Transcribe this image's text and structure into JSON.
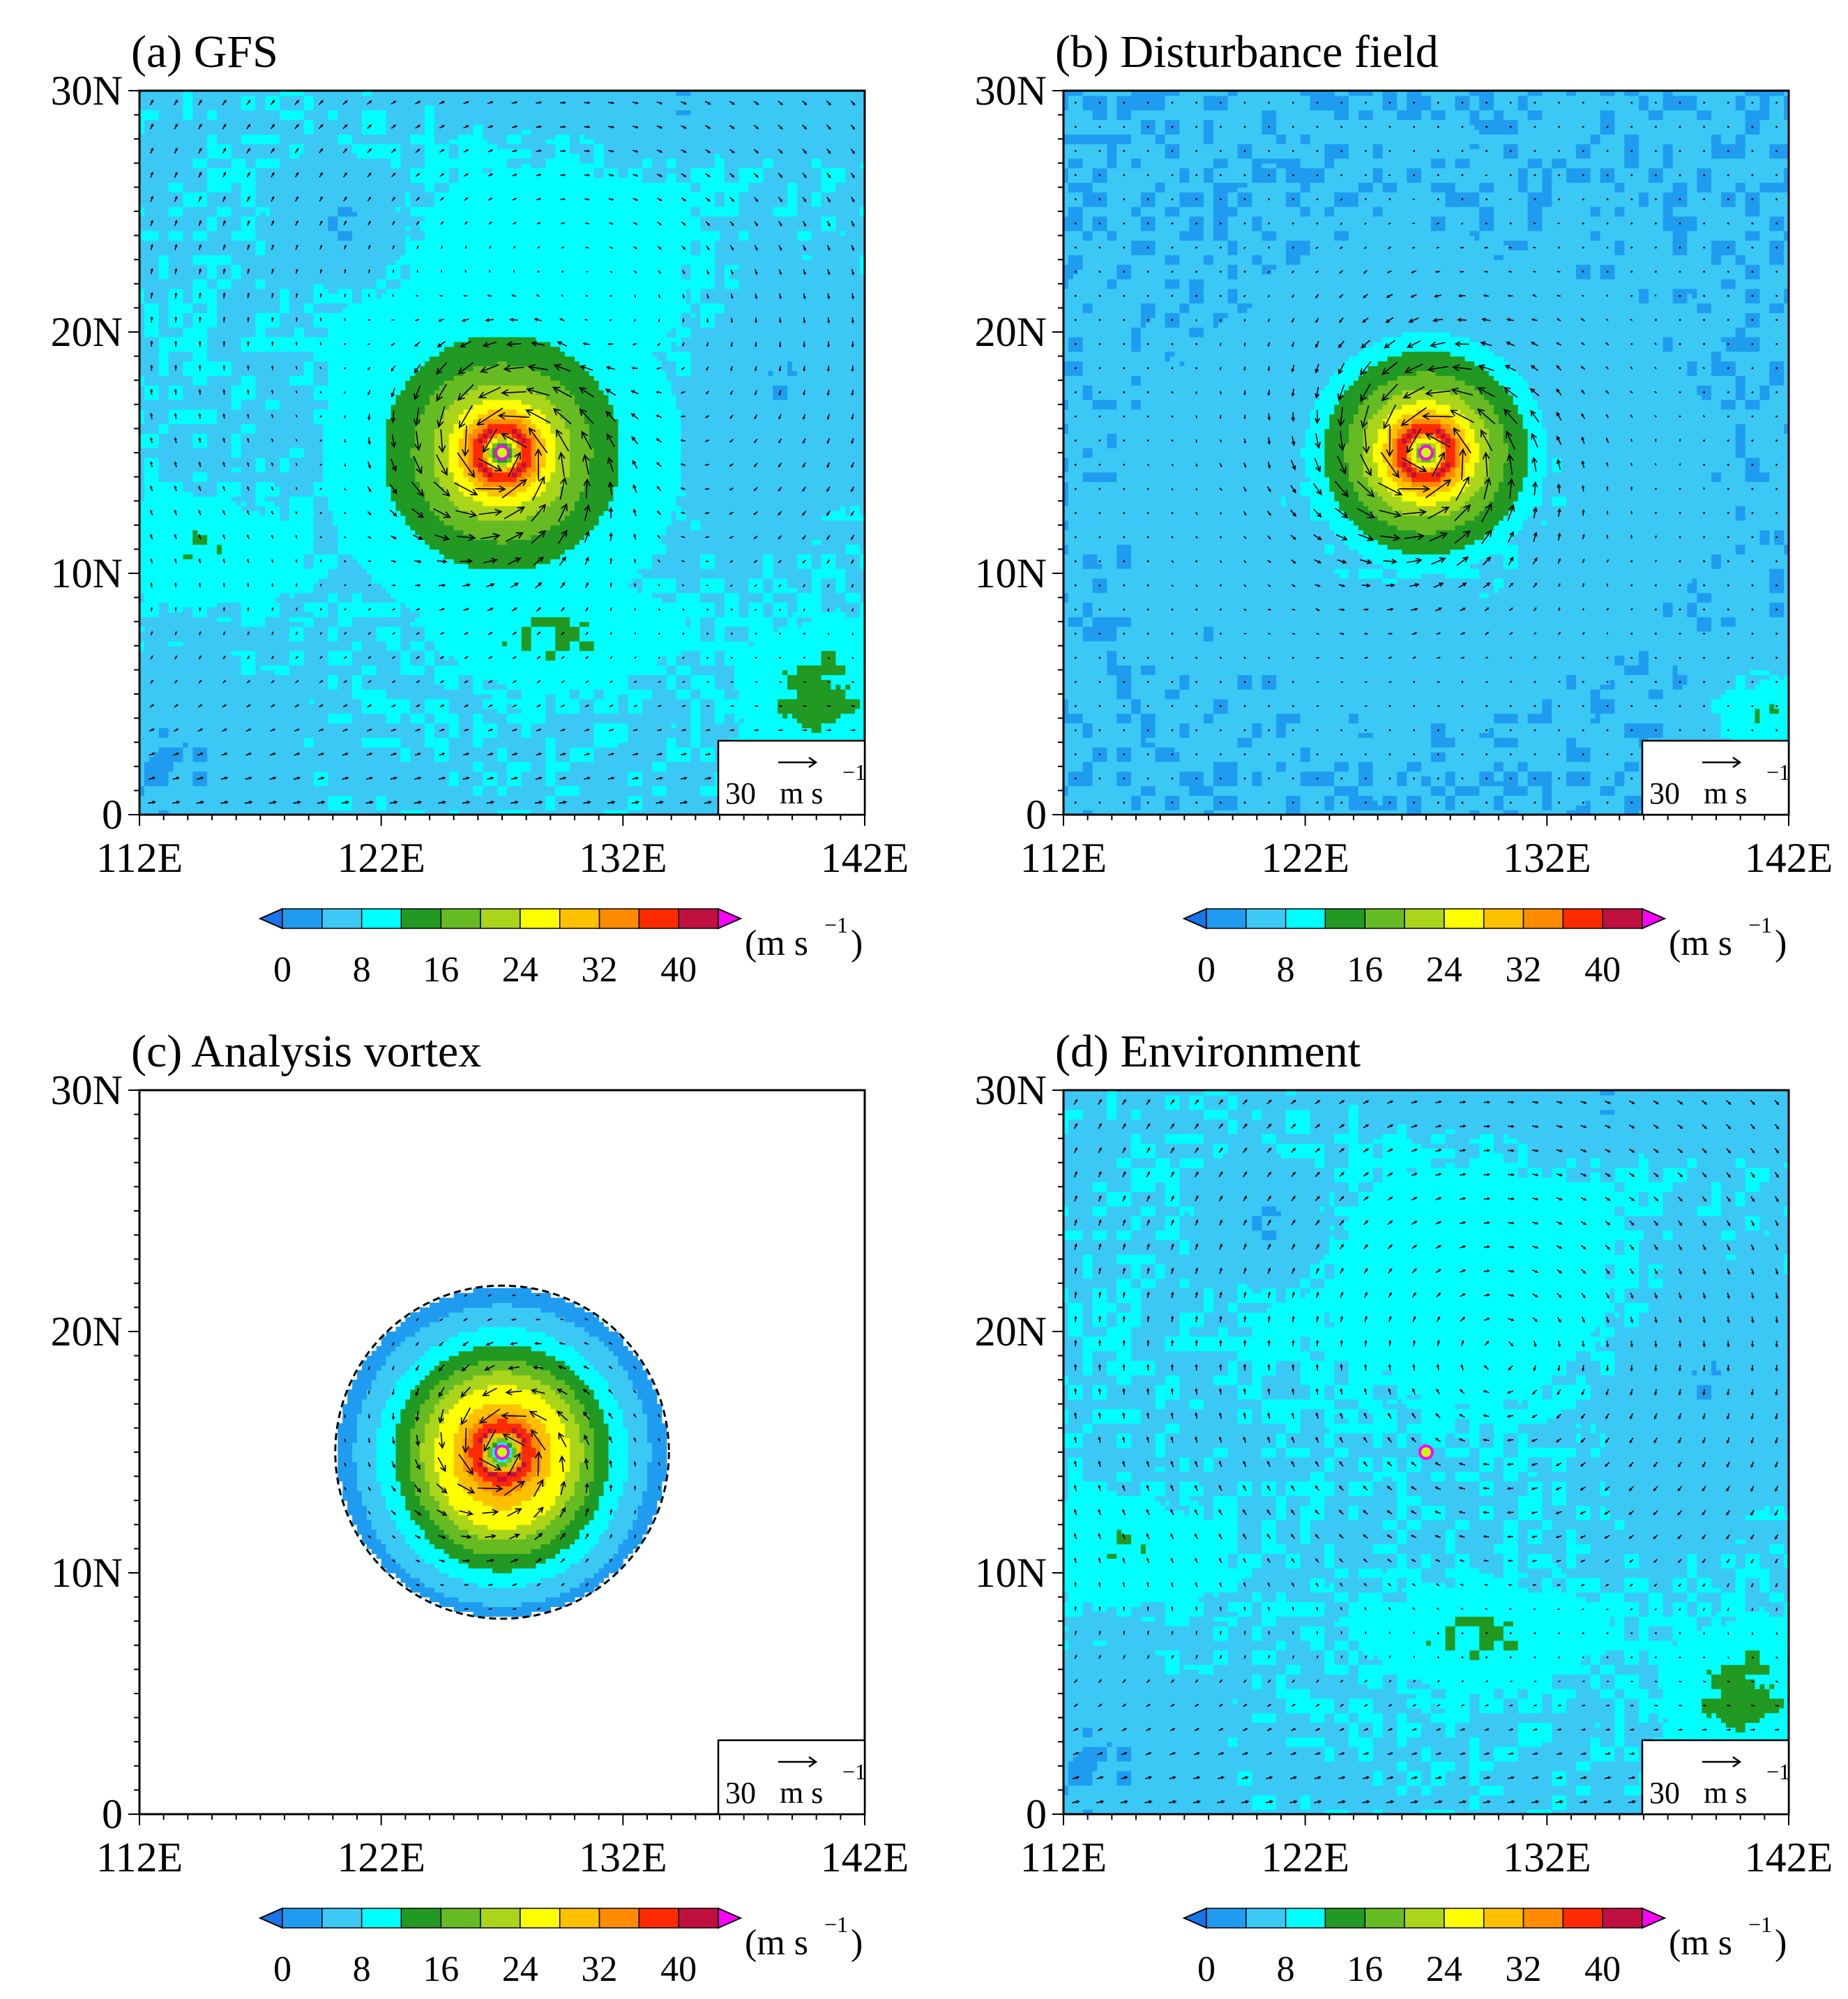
{
  "chart_data": [
    {
      "type": "heatmap",
      "title": "(a) GFS",
      "field": "gfs",
      "xticks": [
        "112E",
        "122E",
        "132E",
        "142E"
      ],
      "yticks": [
        "0",
        "10N",
        "20N",
        "30N"
      ],
      "xlim": [
        112,
        142
      ],
      "ylim": [
        0,
        30
      ],
      "vortex_center": [
        127,
        15
      ],
      "colorbar": {
        "ticks": [
          "0",
          "8",
          "16",
          "24",
          "32",
          "40"
        ],
        "unit": "(m s",
        "unit_exp": "−1",
        "unit_close": ")"
      },
      "reference_vector": {
        "value": "30",
        "unit": "m s",
        "unit_exp": "−1"
      }
    },
    {
      "type": "heatmap",
      "title": "(b) Disturbance field",
      "field": "disturbance",
      "xticks": [
        "112E",
        "122E",
        "132E",
        "142E"
      ],
      "yticks": [
        "0",
        "10N",
        "20N",
        "30N"
      ],
      "xlim": [
        112,
        142
      ],
      "ylim": [
        0,
        30
      ],
      "vortex_center": [
        127,
        15
      ],
      "colorbar": {
        "ticks": [
          "0",
          "8",
          "16",
          "24",
          "32",
          "40"
        ],
        "unit": "(m s",
        "unit_exp": "−1",
        "unit_close": ")"
      },
      "reference_vector": {
        "value": "30",
        "unit": "m s",
        "unit_exp": "−1"
      }
    },
    {
      "type": "heatmap",
      "title": "(c) Analysis vortex",
      "field": "analysis",
      "xticks": [
        "112E",
        "122E",
        "132E",
        "142E"
      ],
      "yticks": [
        "0",
        "10N",
        "20N",
        "30N"
      ],
      "xlim": [
        112,
        142
      ],
      "ylim": [
        0,
        30
      ],
      "vortex_center": [
        127,
        15
      ],
      "colorbar": {
        "ticks": [
          "0",
          "8",
          "16",
          "24",
          "32",
          "40"
        ],
        "unit": "(m s",
        "unit_exp": "−1",
        "unit_close": ")"
      },
      "reference_vector": {
        "value": "30",
        "unit": "m s",
        "unit_exp": "−1"
      }
    },
    {
      "type": "heatmap",
      "title": "(d) Environment",
      "field": "environment",
      "xticks": [
        "112E",
        "122E",
        "132E",
        "142E"
      ],
      "yticks": [
        "0",
        "10N",
        "20N",
        "30N"
      ],
      "xlim": [
        112,
        142
      ],
      "ylim": [
        0,
        30
      ],
      "vortex_center": [
        127,
        15
      ],
      "colorbar": {
        "ticks": [
          "0",
          "8",
          "16",
          "24",
          "32",
          "40"
        ],
        "unit": "(m s",
        "unit_exp": "−1",
        "unit_close": ")"
      },
      "reference_vector": {
        "value": "30",
        "unit": "m s",
        "unit_exp": "−1"
      }
    }
  ],
  "colorbar_levels": [
    0,
    4,
    8,
    12,
    16,
    20,
    24,
    28,
    32,
    36,
    40,
    44
  ],
  "colorbar_colors": [
    "#1874e8",
    "#1f9cf0",
    "#3cc8f5",
    "#00ffff",
    "#229922",
    "#66bb22",
    "#aad51b",
    "#ffff00",
    "#ffc000",
    "#ff8c00",
    "#ff2a00",
    "#c01040",
    "#ff00ff"
  ]
}
